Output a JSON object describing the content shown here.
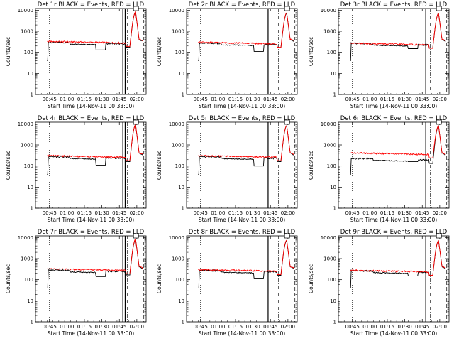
{
  "figure": {
    "xlabel": "Start Time (14-Nov-11 00:33:00)",
    "ylabel": "Counts/sec",
    "x_ticks": [
      "00:45",
      "01:00",
      "01:15",
      "01:30",
      "01:45",
      "02:00"
    ],
    "y_ticks": [
      "1",
      "10",
      "100",
      "1000",
      "10000"
    ]
  },
  "chart_data": [
    {
      "type": "line",
      "title": "Det 1r BLACK = Events, RED = LLD",
      "yscale": "log",
      "ylim": [
        1,
        12000
      ],
      "xlim_minutes": [
        0,
        95
      ],
      "series": [
        {
          "name": "BLACK",
          "color": "#000000",
          "values": {
            "baseline": 300,
            "dip_low": 130,
            "dip_start": 52,
            "dip_end": 60,
            "peak": 8000
          }
        },
        {
          "name": "RED",
          "color": "#ff0000",
          "values": {
            "baseline": 330,
            "peak": 8300
          }
        }
      ],
      "dotted_x": "00:45",
      "solid_x": [
        "01:48",
        "01:50"
      ],
      "dashdot_x": "01:52",
      "dashed_x": "02:06"
    },
    {
      "type": "line",
      "title": "Det 2r BLACK = Events, RED = LLD",
      "yscale": "log",
      "ylim": [
        1,
        12000
      ],
      "xlim_minutes": [
        0,
        95
      ],
      "series": [
        {
          "name": "BLACK",
          "color": "#000000",
          "values": {
            "baseline": 280,
            "dip_low": 110,
            "dip_start": 58,
            "dip_end": 66,
            "peak": 7000
          }
        },
        {
          "name": "RED",
          "color": "#ff0000",
          "values": {
            "baseline": 300,
            "peak": 7500
          }
        }
      ],
      "dotted_x": "00:45",
      "solid_x": [
        "01:43"
      ],
      "dashdot_x": "01:52",
      "dashed_x": "02:06"
    },
    {
      "type": "line",
      "title": "Det 3r BLACK = Events, RED = LLD",
      "yscale": "log",
      "ylim": [
        1,
        12000
      ],
      "xlim_minutes": [
        0,
        95
      ],
      "series": [
        {
          "name": "BLACK",
          "color": "#000000",
          "values": {
            "baseline": 270,
            "dip_low": 150,
            "dip_start": 60,
            "dip_end": 68,
            "peak": 7000
          }
        },
        {
          "name": "RED",
          "color": "#ff0000",
          "values": {
            "baseline": 270,
            "peak": 7000
          }
        }
      ],
      "dotted_x": "00:45",
      "solid_x": [
        "01:48"
      ],
      "dashdot_x": "01:52",
      "dashed_x": "02:06"
    },
    {
      "type": "line",
      "title": "Det 4r BLACK = Events, RED = LLD",
      "yscale": "log",
      "ylim": [
        1,
        12000
      ],
      "xlim_minutes": [
        0,
        95
      ],
      "series": [
        {
          "name": "BLACK",
          "color": "#000000",
          "values": {
            "baseline": 280,
            "dip_low": 110,
            "dip_start": 52,
            "dip_end": 60,
            "peak": 9000
          }
        },
        {
          "name": "RED",
          "color": "#ff0000",
          "values": {
            "baseline": 310,
            "peak": 9000
          }
        }
      ],
      "dotted_x": "00:45",
      "solid_x": [
        "01:48",
        "01:50"
      ],
      "dashdot_x": "01:52",
      "dashed_x": "02:06"
    },
    {
      "type": "line",
      "title": "Det 5r BLACK = Events, RED = LLD",
      "yscale": "log",
      "ylim": [
        1,
        12000
      ],
      "xlim_minutes": [
        0,
        95
      ],
      "series": [
        {
          "name": "BLACK",
          "color": "#000000",
          "values": {
            "baseline": 280,
            "dip_low": 100,
            "dip_start": 58,
            "dip_end": 66,
            "peak": 8000
          }
        },
        {
          "name": "RED",
          "color": "#ff0000",
          "values": {
            "baseline": 310,
            "peak": 8300
          }
        }
      ],
      "dotted_x": "00:45",
      "solid_x": [
        "01:43"
      ],
      "dashdot_x": "01:52",
      "dashed_x": "02:06"
    },
    {
      "type": "line",
      "title": "Det 6r BLACK = Events, RED = LLD",
      "yscale": "log",
      "ylim": [
        1,
        12000
      ],
      "xlim_minutes": [
        0,
        95
      ],
      "series": [
        {
          "name": "BLACK",
          "color": "#000000",
          "values": {
            "baseline": 230,
            "dip_low": 160,
            "dip_start": 60,
            "dip_end": 68,
            "peak": 8000
          }
        },
        {
          "name": "RED",
          "color": "#ff0000",
          "values": {
            "baseline": 420,
            "peak": 8000
          }
        }
      ],
      "dotted_x": "00:45",
      "solid_x": [
        "01:48"
      ],
      "dashdot_x": "01:52",
      "dashed_x": "02:06"
    },
    {
      "type": "line",
      "title": "Det 7r BLACK = Events, RED = LLD",
      "yscale": "log",
      "ylim": [
        1,
        12000
      ],
      "xlim_minutes": [
        0,
        95
      ],
      "series": [
        {
          "name": "BLACK",
          "color": "#000000",
          "values": {
            "baseline": 290,
            "dip_low": 140,
            "dip_start": 52,
            "dip_end": 60,
            "peak": 8000
          }
        },
        {
          "name": "RED",
          "color": "#ff0000",
          "values": {
            "baseline": 330,
            "peak": 8500
          }
        }
      ],
      "dotted_x": "00:45",
      "solid_x": [
        "01:48",
        "01:50"
      ],
      "dashdot_x": "01:52",
      "dashed_x": "02:06"
    },
    {
      "type": "line",
      "title": "Det 8r BLACK = Events, RED = LLD",
      "yscale": "log",
      "ylim": [
        1,
        12000
      ],
      "xlim_minutes": [
        0,
        95
      ],
      "series": [
        {
          "name": "BLACK",
          "color": "#000000",
          "values": {
            "baseline": 280,
            "dip_low": 110,
            "dip_start": 58,
            "dip_end": 66,
            "peak": 7000
          }
        },
        {
          "name": "RED",
          "color": "#ff0000",
          "values": {
            "baseline": 300,
            "peak": 7500
          }
        }
      ],
      "dotted_x": "00:45",
      "solid_x": [
        "01:43"
      ],
      "dashdot_x": "01:52",
      "dashed_x": "02:06"
    },
    {
      "type": "line",
      "title": "Det 9r BLACK = Events, RED = LLD",
      "yscale": "log",
      "ylim": [
        1,
        12000
      ],
      "xlim_minutes": [
        0,
        95
      ],
      "series": [
        {
          "name": "BLACK",
          "color": "#000000",
          "values": {
            "baseline": 270,
            "dip_low": 150,
            "dip_start": 60,
            "dip_end": 68,
            "peak": 7000
          }
        },
        {
          "name": "RED",
          "color": "#ff0000",
          "values": {
            "baseline": 280,
            "peak": 7000
          }
        }
      ],
      "dotted_x": "00:45",
      "solid_x": [
        "01:48"
      ],
      "dashdot_x": "01:52",
      "dashed_x": "02:06"
    }
  ]
}
